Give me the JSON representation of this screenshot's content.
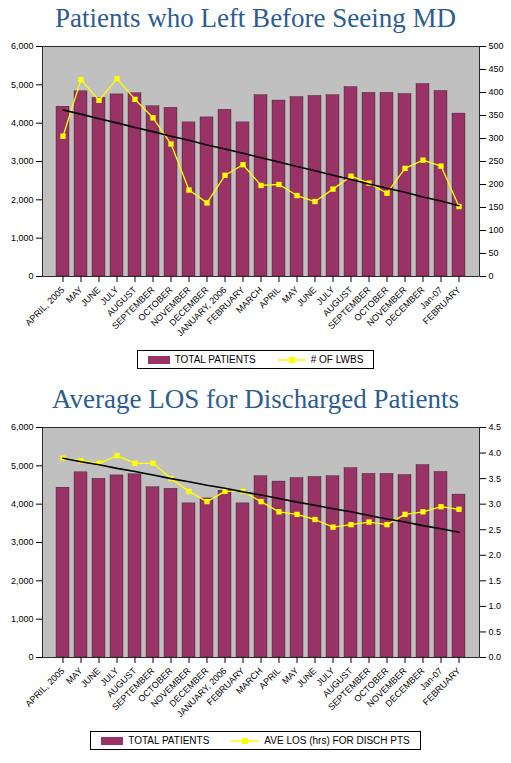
{
  "chart_data": [
    {
      "type": "bar",
      "title": "Patients who Left Before Seeing MD",
      "categories": [
        "APRIL, 2005",
        "MAY",
        "JUNE",
        "JULY",
        "AUGUST",
        "SEPTEMBER",
        "OCTOBER",
        "NOVEMBER",
        "DECEMBER",
        "JANUARY, 2006",
        "FEBRUARY",
        "MARCH",
        "APRIL",
        "MAY",
        "JUNE",
        "JULY",
        "AUGUST",
        "SEPTEMBER",
        "OCTOBER",
        "NOVEMBER",
        "DECEMBER",
        "Jan-07",
        "FEBRUARY"
      ],
      "series": [
        {
          "name": "TOTAL PATIENTS",
          "type": "bar",
          "color": "#993366",
          "values": [
            4430,
            4830,
            4660,
            4750,
            4780,
            4440,
            4400,
            4020,
            4150,
            4350,
            4020,
            4730,
            4590,
            4680,
            4710,
            4730,
            4940,
            4790,
            4790,
            4760,
            5020,
            4840,
            4250
          ]
        },
        {
          "name": "# OF LWBS",
          "type": "line",
          "color": "#ffff00",
          "marker": "square",
          "axis": "y2",
          "values": [
            305,
            428,
            383,
            430,
            385,
            345,
            288,
            188,
            160,
            220,
            243,
            198,
            200,
            176,
            163,
            190,
            218,
            203,
            181,
            235,
            253,
            240,
            152
          ]
        },
        {
          "type": "line",
          "color": "#000000",
          "marker": "none",
          "axis": "y2",
          "values": [
            362,
            353,
            343,
            334,
            324,
            315,
            305,
            296,
            286,
            277,
            268,
            258,
            249,
            239,
            230,
            220,
            211,
            201,
            192,
            183,
            173,
            164,
            154
          ]
        }
      ],
      "ylim": [
        0,
        6000
      ],
      "yticks": [
        0,
        {
          "value": 1000,
          "label": "1,000"
        },
        {
          "value": 2000,
          "label": "2,000"
        },
        {
          "value": 3000,
          "label": "3,000"
        },
        {
          "value": 4000,
          "label": "4,000"
        },
        {
          "value": 5000,
          "label": "5,000"
        },
        {
          "value": 6000,
          "label": "6,000"
        }
      ],
      "y2lim": [
        0,
        500
      ],
      "y2ticks": [
        0,
        50,
        100,
        150,
        200,
        250,
        300,
        350,
        400,
        450,
        500
      ],
      "grid": false,
      "legend": "bottom"
    },
    {
      "type": "bar",
      "title": "Average LOS for Discharged Patients",
      "categories": [
        "APRIL, 2005",
        "MAY",
        "JUNE",
        "JULY",
        "AUGUST",
        "SEPTEMBER",
        "OCTOBER",
        "NOVEMBER",
        "DECEMBER",
        "JANUARY, 2006",
        "FEBRUARY",
        "MARCH",
        "APRIL",
        "MAY",
        "JUNE",
        "JULY",
        "AUGUST",
        "SEPTEMBER",
        "OCTOBER",
        "NOVEMBER",
        "DECEMBER",
        "Jan-07",
        "FEBRUARY"
      ],
      "series": [
        {
          "name": "TOTAL PATIENTS",
          "type": "bar",
          "color": "#993366",
          "values": [
            4430,
            4830,
            4660,
            4750,
            4780,
            4440,
            4400,
            4020,
            4150,
            4350,
            4020,
            4730,
            4590,
            4680,
            4710,
            4730,
            4940,
            4790,
            4790,
            4760,
            5020,
            4840,
            4250
          ]
        },
        {
          "name": "AVE LOS (hrs) FOR DISCH PTS",
          "type": "line",
          "color": "#ffff00",
          "marker": "square",
          "axis": "y2",
          "values": [
            3.9,
            3.85,
            3.8,
            3.95,
            3.8,
            3.8,
            3.5,
            3.25,
            3.05,
            3.25,
            3.25,
            3.05,
            2.85,
            2.8,
            2.7,
            2.55,
            2.6,
            2.65,
            2.6,
            2.8,
            2.85,
            2.95,
            2.9
          ]
        },
        {
          "type": "line",
          "color": "#000000",
          "marker": "none",
          "axis": "y2",
          "values": [
            3.9,
            3.83,
            3.77,
            3.7,
            3.64,
            3.57,
            3.5,
            3.44,
            3.37,
            3.31,
            3.24,
            3.18,
            3.11,
            3.04,
            2.98,
            2.91,
            2.85,
            2.78,
            2.71,
            2.65,
            2.58,
            2.52,
            2.45
          ]
        }
      ],
      "ylim": [
        0,
        6000
      ],
      "yticks": [
        0,
        {
          "value": 1000,
          "label": "1,000"
        },
        {
          "value": 2000,
          "label": "2,000"
        },
        {
          "value": 3000,
          "label": "3,000"
        },
        {
          "value": 4000,
          "label": "4,000"
        },
        {
          "value": 5000,
          "label": "5,000"
        },
        {
          "value": 6000,
          "label": "6,000"
        }
      ],
      "y2lim": [
        0,
        4.5
      ],
      "y2ticks": [
        {
          "value": 0,
          "label": "0.0"
        },
        0.5,
        {
          "value": 1,
          "label": "1.0"
        },
        1.5,
        {
          "value": 2,
          "label": "2.0"
        },
        2.5,
        {
          "value": 3,
          "label": "3.0"
        },
        3.5,
        {
          "value": 4,
          "label": "4.0"
        },
        4.5
      ],
      "grid": false,
      "legend": "bottom"
    }
  ]
}
